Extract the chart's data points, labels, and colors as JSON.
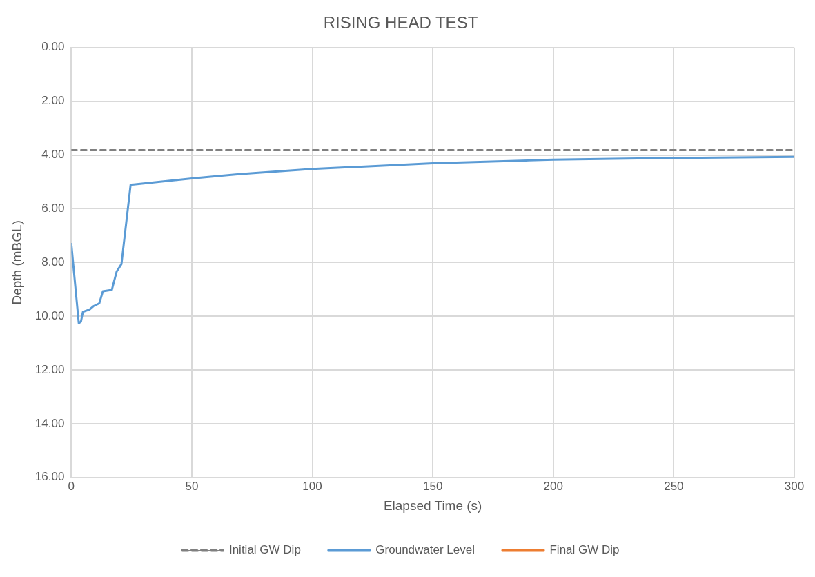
{
  "chart_data": {
    "type": "line",
    "title": "RISING HEAD TEST",
    "xlabel": "Elapsed Time (s)",
    "ylabel": "Depth (mBGL)",
    "xlim": [
      0,
      300
    ],
    "xticks": [
      0,
      50,
      100,
      150,
      200,
      250,
      300
    ],
    "ylim": [
      16,
      0
    ],
    "yticks": [
      {
        "value": 0,
        "label": "0.00"
      },
      {
        "value": 2,
        "label": "2.00"
      },
      {
        "value": 4,
        "label": "4.00"
      },
      {
        "value": 6,
        "label": "6.00"
      },
      {
        "value": 8,
        "label": "8.00"
      },
      {
        "value": 10,
        "label": "10.00"
      },
      {
        "value": 12,
        "label": "12.00"
      },
      {
        "value": 14,
        "label": "14.00"
      },
      {
        "value": 16,
        "label": "16.00"
      }
    ],
    "grid": true,
    "legend": "bottom",
    "marker": "none",
    "series": [
      {
        "name": "Initial GW Dip",
        "color": "#808080",
        "line_style": "dashed",
        "x": [
          0,
          300
        ],
        "values": [
          3.82,
          3.82
        ]
      },
      {
        "name": "Groundwater Level",
        "color": "#5b9bd5",
        "line_style": "solid",
        "x": [
          0,
          3.1,
          4,
          4.8,
          7.6,
          9.1,
          11.6,
          13.1,
          16.8,
          18.8,
          20.8,
          24.6,
          26.6,
          50,
          69.7,
          75.6,
          100,
          150,
          189.8,
          200,
          250,
          300
        ],
        "values": [
          7.31,
          10.26,
          10.2,
          9.84,
          9.75,
          9.63,
          9.52,
          9.07,
          9.02,
          8.34,
          8.06,
          5.11,
          5.09,
          4.87,
          4.71,
          4.67,
          4.52,
          4.31,
          4.2,
          4.17,
          4.11,
          4.07
        ]
      },
      {
        "name": "Final GW Dip",
        "color": "#ed7d31",
        "line_style": "solid"
      }
    ]
  }
}
